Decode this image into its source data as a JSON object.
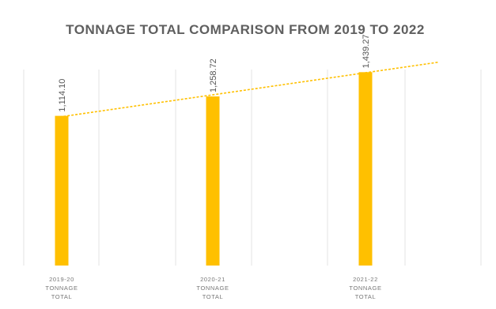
{
  "chart_data": {
    "type": "bar",
    "title": "TONNAGE TOTAL COMPARISON FROM 2019 TO 2022",
    "categories": [
      [
        "2019-20",
        "TONNAGE",
        "TOTAL"
      ],
      [
        "2020-21",
        "TONNAGE",
        "TOTAL"
      ],
      [
        "2021-22",
        "TONNAGE",
        "TOTAL"
      ]
    ],
    "values": [
      1114.1,
      1258.72,
      1439.27
    ],
    "data_labels": [
      "1,114.10",
      "1,258.72",
      "1,439.27"
    ],
    "trendline": "linear",
    "ylim": [
      0,
      1800
    ],
    "grid": true,
    "legend": "none",
    "colors": {
      "bar": "#FFC000",
      "trendline": "#FFC000",
      "grid": "#E3E3E3",
      "title": "#5F5F5F"
    }
  }
}
